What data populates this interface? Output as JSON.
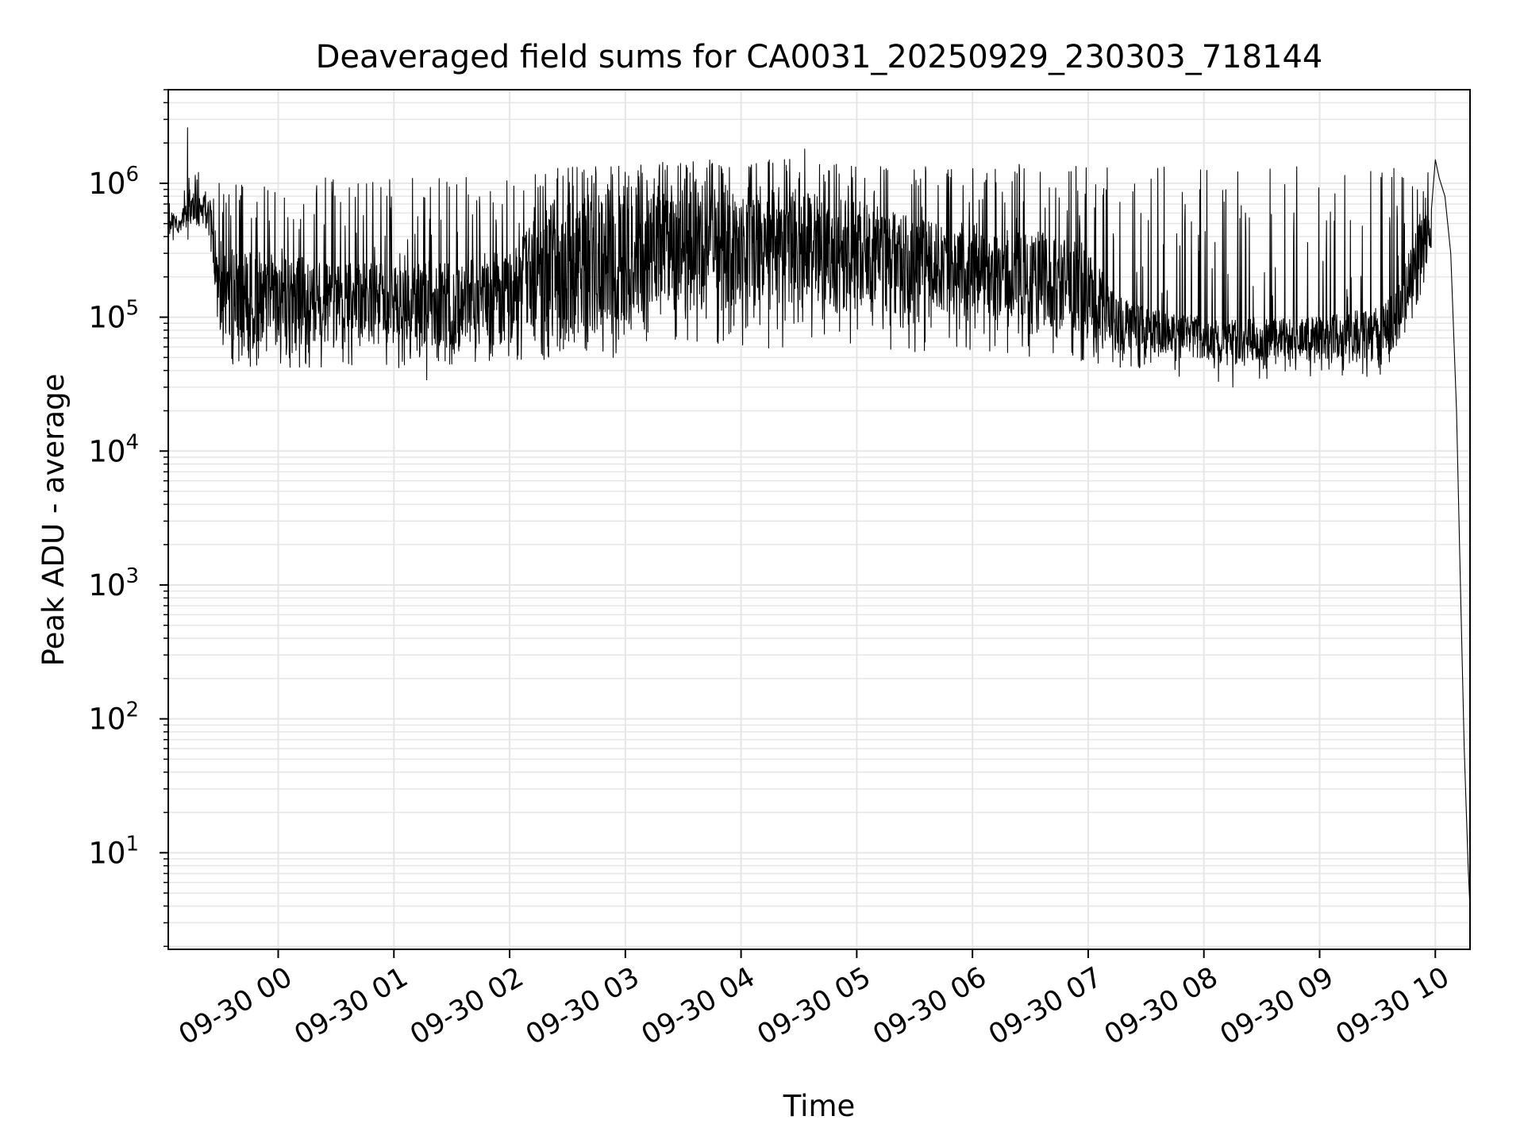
{
  "chart_data": {
    "type": "line",
    "title": "Deaveraged field sums for CA0031_20250929_230303_718144",
    "xlabel": "Time",
    "ylabel": "Peak ADU - average",
    "yscale": "log",
    "ylim": [
      1.9,
      5000000
    ],
    "xlim": [
      "2025-09-29 23:03",
      "2025-09-30 10:18"
    ],
    "grid": true,
    "line_color": "#000000",
    "grid_color": "#e6e6e6",
    "x_ticks": [
      {
        "t": "2025-09-30 00:00",
        "label": "09-30 00"
      },
      {
        "t": "2025-09-30 01:00",
        "label": "09-30 01"
      },
      {
        "t": "2025-09-30 02:00",
        "label": "09-30 02"
      },
      {
        "t": "2025-09-30 03:00",
        "label": "09-30 03"
      },
      {
        "t": "2025-09-30 04:00",
        "label": "09-30 04"
      },
      {
        "t": "2025-09-30 05:00",
        "label": "09-30 05"
      },
      {
        "t": "2025-09-30 06:00",
        "label": "09-30 06"
      },
      {
        "t": "2025-09-30 07:00",
        "label": "09-30 07"
      },
      {
        "t": "2025-09-30 08:00",
        "label": "09-30 08"
      },
      {
        "t": "2025-09-30 09:00",
        "label": "09-30 09"
      },
      {
        "t": "2025-09-30 10:00",
        "label": "09-30 10"
      }
    ],
    "y_ticks": [
      {
        "value": 10,
        "base": "10",
        "exp": "1"
      },
      {
        "value": 100,
        "base": "10",
        "exp": "2"
      },
      {
        "value": 1000,
        "base": "10",
        "exp": "3"
      },
      {
        "value": 10000,
        "base": "10",
        "exp": "4"
      },
      {
        "value": 100000,
        "base": "10",
        "exp": "5"
      },
      {
        "value": 1000000,
        "base": "10",
        "exp": "6"
      }
    ],
    "series": [
      {
        "envelope": {
          "x": [
            "2025-09-29 23:03",
            "2025-09-29 23:10",
            "2025-09-29 23:14",
            "2025-09-29 23:20",
            "2025-09-29 23:25",
            "2025-09-29 23:30",
            "2025-09-29 23:45",
            "2025-09-30 00:00",
            "2025-09-30 00:30",
            "2025-09-30 01:00",
            "2025-09-30 01:30",
            "2025-09-30 02:00",
            "2025-09-30 02:20",
            "2025-09-30 03:00",
            "2025-09-30 03:30",
            "2025-09-30 04:00",
            "2025-09-30 04:30",
            "2025-09-30 05:00",
            "2025-09-30 05:30",
            "2025-09-30 06:00",
            "2025-09-30 06:30",
            "2025-09-30 06:55",
            "2025-09-30 07:15",
            "2025-09-30 07:30",
            "2025-09-30 08:00",
            "2025-09-30 08:30",
            "2025-09-30 09:00",
            "2025-09-30 09:30",
            "2025-09-30 09:40",
            "2025-09-30 09:50",
            "2025-09-30 09:58"
          ],
          "base_low": [
            450000,
            420000,
            500000,
            450000,
            400000,
            60000,
            60000,
            60000,
            65000,
            62000,
            55000,
            62000,
            60000,
            90000,
            110000,
            120000,
            130000,
            110000,
            100000,
            100000,
            90000,
            80000,
            55000,
            55000,
            48000,
            48000,
            48000,
            48000,
            60000,
            150000,
            300000
          ],
          "base_high": [
            650000,
            600000,
            1000000,
            900000,
            700000,
            300000,
            320000,
            300000,
            260000,
            250000,
            280000,
            320000,
            700000,
            1000000,
            1000000,
            1000000,
            900000,
            750000,
            550000,
            500000,
            450000,
            400000,
            150000,
            120000,
            100000,
            100000,
            100000,
            120000,
            160000,
            450000,
            700000
          ],
          "floor": [
            350000,
            300000,
            400000,
            350000,
            300000,
            45000,
            42000,
            42000,
            42000,
            40000,
            38000,
            45000,
            45000,
            50000,
            55000,
            55000,
            55000,
            55000,
            55000,
            55000,
            50000,
            45000,
            42000,
            38000,
            33000,
            33000,
            36000,
            36000,
            45000,
            120000,
            250000
          ],
          "ceiling": [
            700000,
            800000,
            1800000,
            1100000,
            1000000,
            1100000,
            1100000,
            1100000,
            1100000,
            1100000,
            1100000,
            1200000,
            1300000,
            1400000,
            1500000,
            1600000,
            1500000,
            1500000,
            1400000,
            1400000,
            1400000,
            1400000,
            1400000,
            1400000,
            1400000,
            1400000,
            1400000,
            1400000,
            1400000,
            1300000,
            1200000
          ]
        },
        "notable_points": [
          {
            "x": "2025-09-29 23:13",
            "y": 2600000
          },
          {
            "x": "2025-09-30 04:33",
            "y": 1800000
          },
          {
            "x": "2025-09-30 08:15",
            "y": 30000
          },
          {
            "x": "2025-09-30 01:17",
            "y": 34000
          }
        ],
        "decay_tail": {
          "x": [
            "2025-09-30 10:00",
            "2025-09-30 10:02",
            "2025-09-30 10:05",
            "2025-09-30 10:08",
            "2025-09-30 10:11",
            "2025-09-30 10:13",
            "2025-09-30 10:15",
            "2025-09-30 10:17",
            "2025-09-30 10:18"
          ],
          "y": [
            1500000,
            1100000,
            800000,
            300000,
            20000,
            1000,
            60,
            8,
            3.8
          ]
        }
      }
    ]
  }
}
